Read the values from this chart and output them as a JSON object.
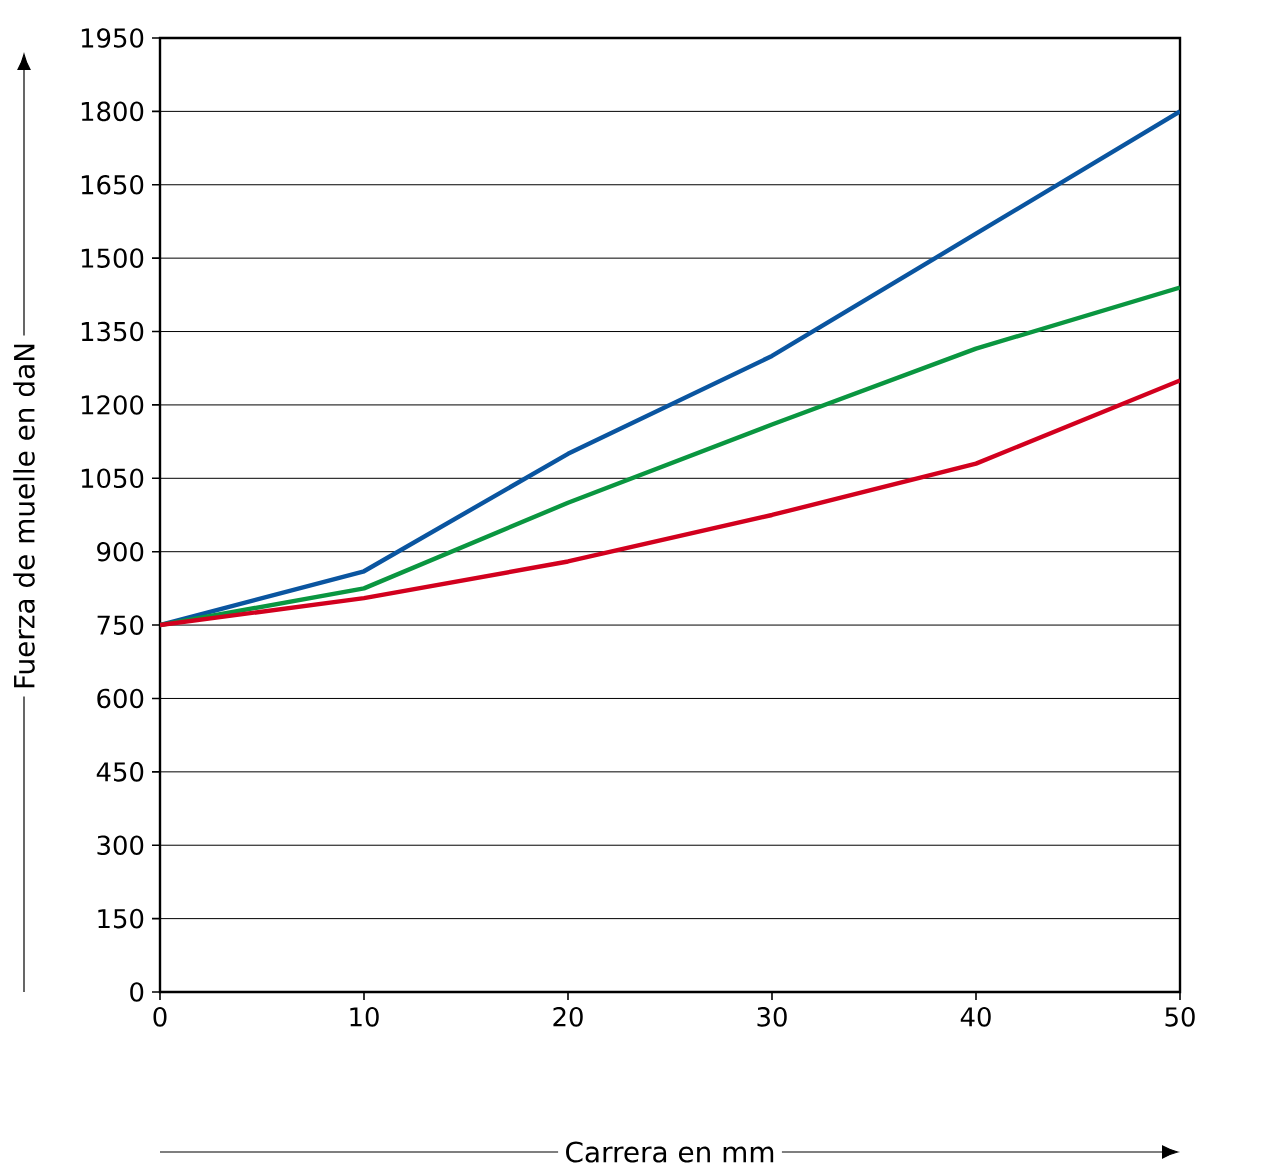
{
  "chart_data": {
    "type": "line",
    "xlabel": "Carrera en mm",
    "ylabel": "Fuerza de muelle en daN",
    "x": [
      0,
      10,
      20,
      30,
      40,
      50
    ],
    "series": [
      {
        "color": "#0a55a0",
        "values": [
          750,
          860,
          1100,
          1300,
          1550,
          1800
        ]
      },
      {
        "color": "#0a9640",
        "values": [
          750,
          825,
          1000,
          1160,
          1315,
          1440
        ]
      },
      {
        "color": "#d2001e",
        "values": [
          750,
          805,
          880,
          975,
          1080,
          1250
        ]
      }
    ],
    "xlim": [
      0,
      50
    ],
    "xticks": [
      0,
      10,
      20,
      30,
      40,
      50
    ],
    "ylim": [
      0,
      1950
    ],
    "yticks": [
      0,
      150,
      300,
      450,
      600,
      750,
      900,
      1050,
      1200,
      1350,
      1500,
      1650,
      1800,
      1950
    ],
    "grid": "y",
    "marker": "none",
    "line_style": "solid"
  }
}
